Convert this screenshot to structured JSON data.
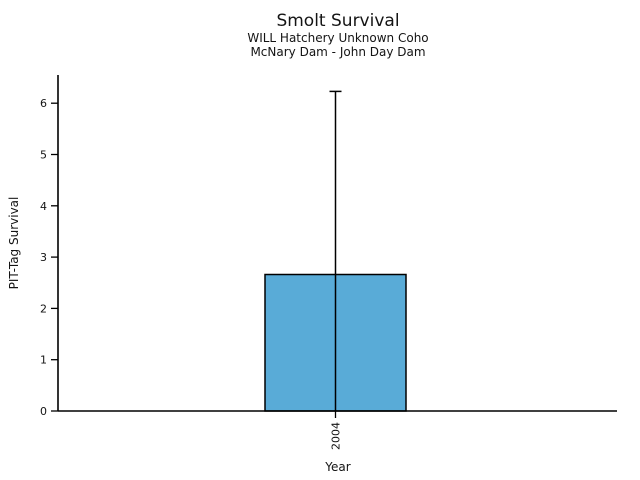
{
  "chart_data": {
    "type": "bar",
    "title": "Smolt Survival",
    "subtitle1": "WILL Hatchery Unknown Coho",
    "subtitle2": "McNary Dam - John Day Dam",
    "xlabel": "Year",
    "ylabel": "PIT-Tag Survival",
    "categories": [
      "2004"
    ],
    "values": [
      2.66
    ],
    "error_upper": [
      6.23
    ],
    "error_lower": [
      0
    ],
    "yticks": [
      0,
      1,
      2,
      3,
      4,
      5,
      6
    ],
    "ylim": [
      0,
      6.55
    ],
    "x_tick_rotation": 90,
    "grid": false,
    "legend": false,
    "bar_color": "#59ABD7",
    "bar_edge_color": "#000000",
    "error_color": "#000000",
    "axis_color": "#000000"
  }
}
